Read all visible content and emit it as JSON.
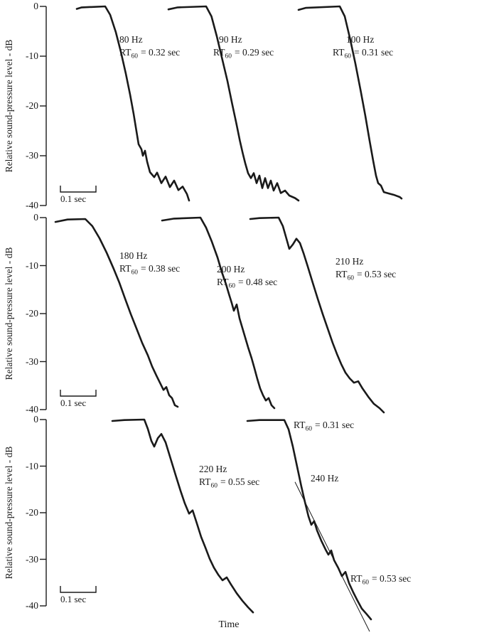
{
  "chart_data": {
    "type": "line",
    "title": "",
    "xlabel": "Time",
    "ylabel": "Relative sound-pressure level - dB",
    "ylim": [
      -40,
      0
    ],
    "yticks": [
      "0",
      "-10",
      "-20",
      "-30",
      "-40"
    ],
    "grid": false,
    "legend": "none",
    "scale_bar_label": "0.1 sec",
    "scale_bar_sec": 0.1,
    "rt_prefix": "RT",
    "rt_sub": "60",
    "colors": {
      "ink": "#1a1a1a",
      "background": "#ffffff"
    },
    "panels": [
      {
        "curves": [
          {
            "freq_label": "80 Hz",
            "freq_hz": 80,
            "rt60_sec": 0.32,
            "rt_rest": "= 0.32 sec",
            "points": [
              [
                0.086,
                -0.5
              ],
              [
                0.1,
                -0.2
              ],
              [
                0.166,
                0
              ],
              [
                0.18,
                -1.7
              ],
              [
                0.196,
                -5.2
              ],
              [
                0.21,
                -9.1
              ],
              [
                0.224,
                -13.5
              ],
              [
                0.236,
                -17.7
              ],
              [
                0.246,
                -21.6
              ],
              [
                0.254,
                -25.1
              ],
              [
                0.26,
                -27.7
              ],
              [
                0.268,
                -28.7
              ],
              [
                0.272,
                -30.0
              ],
              [
                0.278,
                -29.0
              ],
              [
                0.284,
                -31.2
              ],
              [
                0.292,
                -33.3
              ],
              [
                0.304,
                -34.3
              ],
              [
                0.312,
                -33.4
              ],
              [
                0.324,
                -35.5
              ],
              [
                0.336,
                -34.2
              ],
              [
                0.348,
                -36.3
              ],
              [
                0.36,
                -35.0
              ],
              [
                0.372,
                -36.9
              ],
              [
                0.384,
                -36.2
              ],
              [
                0.396,
                -37.7
              ],
              [
                0.402,
                -39.0
              ]
            ]
          },
          {
            "freq_label": "90 Hz",
            "freq_hz": 90,
            "rt60_sec": 0.29,
            "rt_rest": "= 0.29 sec",
            "points": [
              [
                0.344,
                -0.6
              ],
              [
                0.37,
                -0.2
              ],
              [
                0.45,
                0
              ],
              [
                0.465,
                -2.0
              ],
              [
                0.48,
                -6.0
              ],
              [
                0.495,
                -10.5
              ],
              [
                0.51,
                -15.0
              ],
              [
                0.523,
                -19.5
              ],
              [
                0.535,
                -23.5
              ],
              [
                0.545,
                -27.0
              ],
              [
                0.553,
                -29.5
              ],
              [
                0.56,
                -31.5
              ],
              [
                0.568,
                -33.5
              ],
              [
                0.576,
                -34.5
              ],
              [
                0.584,
                -33.5
              ],
              [
                0.592,
                -35.5
              ],
              [
                0.6,
                -34.0
              ],
              [
                0.608,
                -36.5
              ],
              [
                0.616,
                -34.5
              ],
              [
                0.624,
                -36.5
              ],
              [
                0.632,
                -35.0
              ],
              [
                0.64,
                -37.0
              ],
              [
                0.65,
                -35.5
              ],
              [
                0.66,
                -37.5
              ],
              [
                0.672,
                -37.0
              ],
              [
                0.684,
                -38.0
              ],
              [
                0.7,
                -38.5
              ],
              [
                0.71,
                -39.0
              ]
            ]
          },
          {
            "freq_label": "100 Hz",
            "freq_hz": 100,
            "rt60_sec": 0.31,
            "rt_rest": "= 0.31 sec",
            "points": [
              [
                0.71,
                -0.7
              ],
              [
                0.73,
                -0.3
              ],
              [
                0.826,
                0
              ],
              [
                0.84,
                -2.0
              ],
              [
                0.855,
                -6.5
              ],
              [
                0.87,
                -11.5
              ],
              [
                0.885,
                -17.0
              ],
              [
                0.898,
                -22.0
              ],
              [
                0.91,
                -27.0
              ],
              [
                0.92,
                -31.0
              ],
              [
                0.928,
                -34.0
              ],
              [
                0.934,
                -35.5
              ],
              [
                0.942,
                -36.0
              ],
              [
                0.95,
                -37.3
              ],
              [
                0.965,
                -37.6
              ],
              [
                0.98,
                -37.9
              ],
              [
                0.995,
                -38.3
              ],
              [
                1.0,
                -38.6
              ]
            ]
          }
        ]
      },
      {
        "curves": [
          {
            "freq_label": "180 Hz",
            "freq_hz": 180,
            "rt60_sec": 0.38,
            "rt_rest": "= 0.38 sec",
            "points": [
              [
                0.026,
                -0.9
              ],
              [
                0.06,
                -0.4
              ],
              [
                0.11,
                -0.3
              ],
              [
                0.13,
                -1.8
              ],
              [
                0.15,
                -4.3
              ],
              [
                0.17,
                -7.3
              ],
              [
                0.19,
                -10.7
              ],
              [
                0.206,
                -13.6
              ],
              [
                0.222,
                -16.9
              ],
              [
                0.238,
                -20.1
              ],
              [
                0.254,
                -23.1
              ],
              [
                0.27,
                -26.1
              ],
              [
                0.286,
                -28.7
              ],
              [
                0.298,
                -31.0
              ],
              [
                0.31,
                -32.9
              ],
              [
                0.322,
                -34.7
              ],
              [
                0.33,
                -35.9
              ],
              [
                0.338,
                -35.3
              ],
              [
                0.346,
                -37.0
              ],
              [
                0.354,
                -37.6
              ],
              [
                0.362,
                -39.1
              ],
              [
                0.37,
                -39.4
              ]
            ]
          },
          {
            "freq_label": "200 Hz",
            "freq_hz": 200,
            "rt60_sec": 0.48,
            "rt_rest": "= 0.48 sec",
            "points": [
              [
                0.326,
                -0.6
              ],
              [
                0.36,
                -0.2
              ],
              [
                0.434,
                0
              ],
              [
                0.45,
                -2.1
              ],
              [
                0.466,
                -5.0
              ],
              [
                0.482,
                -8.3
              ],
              [
                0.494,
                -11.3
              ],
              [
                0.506,
                -13.9
              ],
              [
                0.514,
                -15.9
              ],
              [
                0.522,
                -17.8
              ],
              [
                0.528,
                -19.4
              ],
              [
                0.536,
                -18.1
              ],
              [
                0.544,
                -21.0
              ],
              [
                0.556,
                -24.0
              ],
              [
                0.568,
                -27.0
              ],
              [
                0.578,
                -29.3
              ],
              [
                0.586,
                -31.4
              ],
              [
                0.594,
                -33.6
              ],
              [
                0.602,
                -35.6
              ],
              [
                0.61,
                -37.0
              ],
              [
                0.618,
                -38.1
              ],
              [
                0.626,
                -37.6
              ],
              [
                0.634,
                -39.1
              ],
              [
                0.642,
                -39.7
              ]
            ]
          },
          {
            "freq_label": "210 Hz",
            "freq_hz": 210,
            "rt60_sec": 0.53,
            "rt_rest": "= 0.53 sec",
            "points": [
              [
                0.574,
                -0.3
              ],
              [
                0.6,
                -0.1
              ],
              [
                0.654,
                0
              ],
              [
                0.666,
                -1.8
              ],
              [
                0.676,
                -4.4
              ],
              [
                0.684,
                -6.5
              ],
              [
                0.694,
                -5.6
              ],
              [
                0.704,
                -4.4
              ],
              [
                0.714,
                -5.3
              ],
              [
                0.724,
                -7.4
              ],
              [
                0.736,
                -10.2
              ],
              [
                0.75,
                -13.6
              ],
              [
                0.764,
                -16.9
              ],
              [
                0.778,
                -20.1
              ],
              [
                0.792,
                -23.1
              ],
              [
                0.806,
                -26.1
              ],
              [
                0.818,
                -28.4
              ],
              [
                0.83,
                -30.5
              ],
              [
                0.842,
                -32.3
              ],
              [
                0.854,
                -33.5
              ],
              [
                0.866,
                -34.4
              ],
              [
                0.878,
                -34.1
              ],
              [
                0.89,
                -35.6
              ],
              [
                0.906,
                -37.3
              ],
              [
                0.922,
                -38.8
              ],
              [
                0.938,
                -39.7
              ],
              [
                0.95,
                -40.6
              ]
            ]
          }
        ]
      },
      {
        "curves": [
          {
            "freq_label": "220 Hz",
            "freq_hz": 220,
            "rt60_sec": 0.55,
            "rt_rest": "= 0.55 sec",
            "points": [
              [
                0.186,
                -0.3
              ],
              [
                0.22,
                -0.1
              ],
              [
                0.276,
                0
              ],
              [
                0.286,
                -2.0
              ],
              [
                0.296,
                -4.6
              ],
              [
                0.304,
                -5.8
              ],
              [
                0.314,
                -4.0
              ],
              [
                0.324,
                -3.1
              ],
              [
                0.336,
                -4.9
              ],
              [
                0.35,
                -8.4
              ],
              [
                0.364,
                -11.9
              ],
              [
                0.378,
                -15.3
              ],
              [
                0.39,
                -18.0
              ],
              [
                0.402,
                -20.2
              ],
              [
                0.412,
                -19.5
              ],
              [
                0.424,
                -22.3
              ],
              [
                0.436,
                -25.2
              ],
              [
                0.448,
                -27.5
              ],
              [
                0.46,
                -29.9
              ],
              [
                0.472,
                -31.8
              ],
              [
                0.484,
                -33.3
              ],
              [
                0.496,
                -34.5
              ],
              [
                0.508,
                -33.9
              ],
              [
                0.52,
                -35.4
              ],
              [
                0.536,
                -37.3
              ],
              [
                0.552,
                -38.9
              ],
              [
                0.568,
                -40.3
              ],
              [
                0.582,
                -41.4
              ]
            ]
          },
          {
            "freq_label": "240 Hz",
            "freq_hz": 240,
            "rt60_early_sec": 0.31,
            "rt_rest_early": "= 0.31 sec",
            "rt60_late_sec": 0.53,
            "rt_rest_late": "= 0.53 sec",
            "points": [
              [
                0.566,
                -0.3
              ],
              [
                0.6,
                -0.1
              ],
              [
                0.67,
                -0.1
              ],
              [
                0.682,
                -2.1
              ],
              [
                0.694,
                -5.8
              ],
              [
                0.706,
                -10.1
              ],
              [
                0.718,
                -14.4
              ],
              [
                0.728,
                -17.7
              ],
              [
                0.738,
                -20.8
              ],
              [
                0.746,
                -22.6
              ],
              [
                0.754,
                -21.8
              ],
              [
                0.762,
                -23.8
              ],
              [
                0.774,
                -26.0
              ],
              [
                0.786,
                -27.9
              ],
              [
                0.794,
                -29.0
              ],
              [
                0.802,
                -28.1
              ],
              [
                0.81,
                -30.2
              ],
              [
                0.822,
                -31.9
              ],
              [
                0.832,
                -33.6
              ],
              [
                0.842,
                -32.7
              ],
              [
                0.852,
                -35.1
              ],
              [
                0.864,
                -37.1
              ],
              [
                0.876,
                -38.9
              ],
              [
                0.888,
                -40.6
              ],
              [
                0.902,
                -41.8
              ],
              [
                0.914,
                -42.9
              ]
            ],
            "fit_line": [
              [
                0.7,
                -13.4
              ],
              [
                0.91,
                -45.5
              ]
            ]
          }
        ]
      }
    ]
  }
}
